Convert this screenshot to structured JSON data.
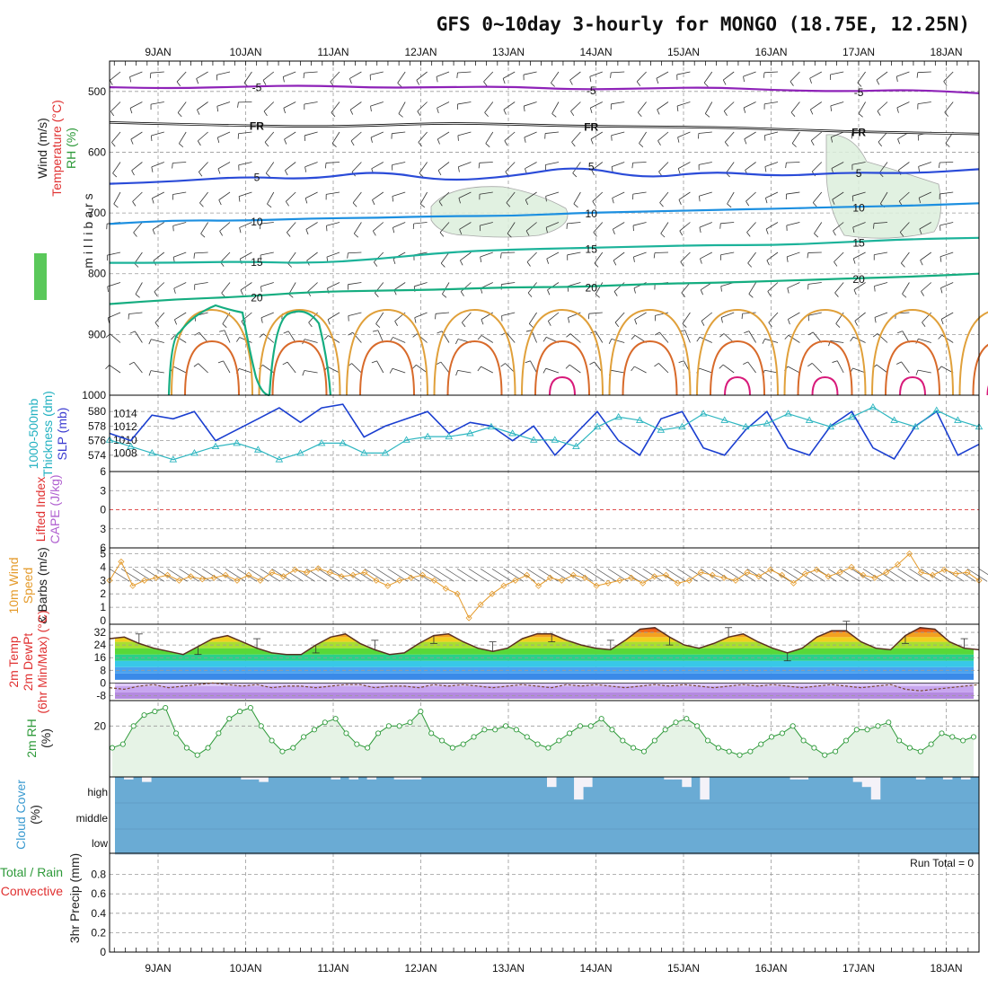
{
  "title": "GFS 0~10day 3-hourly for MONGO (18.75E, 12.25N)",
  "x_axis": {
    "dates": [
      "9JAN",
      "10JAN",
      "11JAN",
      "12JAN",
      "13JAN",
      "14JAN",
      "15JAN",
      "16JAN",
      "17JAN",
      "18JAN"
    ]
  },
  "chart_data": [
    {
      "type": "contour",
      "panel": "upper-air",
      "ylabel_lines": [
        "Wind (m/s)",
        "Temperature (°C)",
        "RH (%)"
      ],
      "ylabel_units": "millibars",
      "y_ticks": [
        "500",
        "600",
        "700",
        "800",
        "900",
        "1000"
      ],
      "ylim": [
        1000,
        450
      ],
      "temperature_contours": [
        {
          "label": "-5",
          "color": "#8e22b8",
          "p": [
            493,
            495,
            492,
            490,
            494,
            493,
            492,
            497,
            495,
            493,
            498,
            500,
            497,
            503
          ]
        },
        {
          "label": "FR",
          "color": "#111111",
          "p": [
            551,
            554,
            556,
            558,
            556,
            552,
            554,
            557,
            558,
            559,
            562,
            566,
            568,
            570
          ]
        },
        {
          "label": "5",
          "color": "#2a4bd8",
          "p": [
            652,
            648,
            640,
            645,
            630,
            648,
            640,
            622,
            644,
            631,
            640,
            633,
            635,
            628
          ]
        },
        {
          "label": "10",
          "color": "#1c8fe0",
          "p": [
            718,
            712,
            713,
            709,
            708,
            705,
            705,
            700,
            698,
            695,
            693,
            690,
            688,
            684
          ]
        },
        {
          "label": "15",
          "color": "#1cb39a",
          "p": [
            782,
            782,
            780,
            783,
            776,
            765,
            760,
            758,
            755,
            753,
            753,
            748,
            743,
            741
          ]
        },
        {
          "label": "20",
          "color": "#15ad80",
          "p": [
            850,
            842,
            838,
            830,
            828,
            826,
            822,
            822,
            817,
            815,
            812,
            808,
            805,
            800
          ]
        }
      ],
      "contour_labels_shown": [
        "-5",
        "FR",
        "5",
        "10",
        "15",
        "20"
      ]
    },
    {
      "type": "line",
      "panel": "thickness-slp",
      "ylabel_lines": [
        "1000-500mb",
        "Thickness (dm)",
        "SLP (mb)"
      ],
      "left_ticks": [
        "574",
        "576",
        "578",
        "580"
      ],
      "right_ticks": [
        "1008",
        "1010",
        "1012",
        "1014"
      ],
      "series": [
        {
          "name": "1000-500mb Thickness (dm)",
          "color": "#1a3ed0",
          "marker": "none",
          "values": [
            577.0,
            576.0,
            579.5,
            579.0,
            580.0,
            576.0,
            577.5,
            579.0,
            580.5,
            578.5,
            580.5,
            581.0,
            576.5,
            578.0,
            579.0,
            580.0,
            577.0,
            578.5,
            578.0,
            576.0,
            578.0,
            574.0,
            577.0,
            580.0,
            576.0,
            574.0,
            579.0,
            580.0,
            575.0,
            574.0,
            577.5,
            580.0,
            575.0,
            574.0,
            578.0,
            580.0,
            575.0,
            573.5,
            578.0,
            580.0,
            574.0,
            575.5
          ]
        },
        {
          "name": "SLP (mb)",
          "color": "#2eb6c0",
          "marker": "triangle",
          "values": [
            1010.0,
            1009.0,
            1008.0,
            1007.0,
            1008.0,
            1009.0,
            1009.5,
            1008.5,
            1007.0,
            1008.0,
            1009.5,
            1009.5,
            1008.0,
            1008.0,
            1010.0,
            1010.5,
            1010.5,
            1011.0,
            1012.0,
            1011.0,
            1010.0,
            1010.0,
            1009.0,
            1012.0,
            1013.5,
            1013.0,
            1011.5,
            1012.0,
            1014.0,
            1013.0,
            1012.0,
            1012.5,
            1014.0,
            1013.0,
            1012.0,
            1013.5,
            1015.0,
            1013.0,
            1012.0,
            1014.5,
            1013.0,
            1012.0
          ]
        }
      ]
    },
    {
      "type": "line",
      "panel": "lifted-index-cape",
      "ylabel_lines": [
        "Lifted Index",
        "CAPE (J/kg)"
      ],
      "y_ticks": [
        "6",
        "3",
        "0",
        "3",
        "6"
      ],
      "ylim": [
        -6,
        6
      ],
      "zero_line_color": "#e05050",
      "series": []
    },
    {
      "type": "line",
      "panel": "wind-10m",
      "ylabel_lines": [
        "10m Wind",
        "Speed",
        "& Barbs (m/s)"
      ],
      "y_ticks": [
        "0",
        "1",
        "2",
        "3",
        "4",
        "5"
      ],
      "ylim": [
        0,
        5.3
      ],
      "series": [
        {
          "name": "10m Wind Speed (m/s)",
          "color": "#e49a2a",
          "marker": "diamond",
          "values": [
            3.0,
            4.4,
            2.6,
            3.0,
            3.2,
            3.4,
            3.0,
            3.3,
            3.1,
            3.2,
            3.4,
            3.0,
            3.4,
            3.0,
            3.6,
            3.3,
            3.8,
            3.6,
            3.9,
            3.6,
            3.3,
            3.4,
            3.6,
            3.0,
            2.6,
            3.0,
            3.2,
            3.4,
            3.0,
            2.4,
            2.0,
            0.2,
            1.2,
            2.0,
            2.6,
            3.0,
            3.4,
            2.6,
            3.2,
            3.0,
            3.4,
            3.2,
            2.6,
            2.8,
            3.0,
            3.2,
            2.8,
            3.3,
            3.4,
            2.8,
            3.0,
            3.6,
            3.4,
            3.2,
            3.0,
            3.6,
            3.3,
            3.8,
            3.4,
            2.8,
            3.5,
            3.8,
            3.3,
            3.6,
            4.0,
            3.4,
            3.2,
            3.6,
            4.2,
            5.0,
            3.6,
            3.4,
            3.8,
            3.5,
            3.6,
            3.0
          ]
        }
      ]
    },
    {
      "type": "area",
      "panel": "temp-2m",
      "ylabel_lines": [
        "2m Temp",
        "2m DewPt",
        "(6hr Min/Max) (°C)"
      ],
      "y_ticks": [
        "-8",
        "0",
        "8",
        "16",
        "24",
        "32"
      ],
      "ylim": [
        -10,
        36
      ],
      "series": [
        {
          "name": "2m Temp (°C)",
          "color": "#5a3020",
          "values": [
            28,
            29,
            25,
            22,
            20,
            18,
            23,
            28,
            30,
            26,
            22,
            19,
            18,
            18,
            24,
            29,
            31,
            25,
            21,
            18,
            19,
            25,
            30,
            31,
            26,
            22,
            20,
            22,
            28,
            31,
            31,
            27,
            24,
            22,
            21,
            27,
            34,
            35,
            29,
            24,
            22,
            25,
            29,
            31,
            26,
            22,
            19,
            22,
            29,
            33,
            33,
            26,
            22,
            21,
            30,
            35,
            34,
            26,
            22,
            21
          ]
        },
        {
          "name": "2m DewPt (°C)",
          "color": "#8a5aa0",
          "style": "dashed",
          "values": [
            -3,
            -4,
            -2,
            -1,
            -3,
            -2,
            -1,
            0,
            -1,
            -2,
            -1,
            -3,
            -2,
            -2,
            -3,
            -2,
            -1,
            -1,
            -3,
            -2,
            -2,
            -3,
            -1,
            -2,
            -1,
            -2,
            -3,
            -2,
            -1,
            -2,
            -3,
            -1,
            -2,
            -1,
            -2,
            -3,
            -2,
            -1,
            -2,
            -1,
            -2,
            -3,
            -2,
            -1,
            -2,
            -1,
            -2,
            -3,
            -2,
            -1,
            -2,
            -3,
            -2,
            -1,
            -4,
            -5,
            -4,
            -3,
            -2,
            -1
          ]
        }
      ]
    },
    {
      "type": "line",
      "panel": "rh-2m",
      "ylabel_lines": [
        "2m RH",
        "(%)"
      ],
      "y_ticks": [
        "20"
      ],
      "ylim": [
        6,
        26
      ],
      "series": [
        {
          "name": "2m RH (%)",
          "color": "#2e9a3a",
          "marker": "circle",
          "values": [
            14,
            15,
            20,
            23,
            24,
            25,
            18,
            14,
            12,
            14,
            18,
            22,
            24,
            25,
            20,
            16,
            13,
            14,
            17,
            19,
            21,
            22,
            18,
            15,
            14,
            18,
            20,
            20,
            21,
            24,
            18,
            16,
            14,
            15,
            17,
            19,
            19,
            20,
            19,
            17,
            15,
            14,
            16,
            18,
            20,
            20,
            22,
            19,
            16,
            14,
            13,
            16,
            19,
            21,
            22,
            20,
            16,
            14,
            13,
            12,
            13,
            15,
            17,
            18,
            20,
            16,
            14,
            12,
            13,
            16,
            19,
            19,
            20,
            21,
            16,
            14,
            13,
            15,
            18,
            17,
            16,
            17
          ]
        }
      ]
    },
    {
      "type": "bar",
      "panel": "cloud-cover",
      "ylabel_lines": [
        "Cloud Cover",
        "(%)"
      ],
      "y_ticks": [
        "high",
        "middle",
        "low"
      ],
      "base_color": "#6aabd4",
      "notch_color": "#f4f2f8",
      "high_cloud_gaps_percent": [
        0,
        1,
        0,
        2,
        0,
        0,
        0,
        0,
        0,
        0,
        0,
        0,
        0,
        0,
        1,
        1,
        2,
        0,
        0,
        0,
        0,
        0,
        0,
        0,
        1,
        0,
        1,
        0,
        1,
        0,
        0,
        1,
        1,
        1,
        0,
        0,
        0,
        0,
        0,
        0,
        0,
        0,
        0,
        0,
        0,
        0,
        0,
        0,
        4,
        0,
        0,
        9,
        4,
        0,
        0,
        0,
        0,
        0,
        0,
        0,
        0,
        1,
        1,
        4,
        0,
        9,
        0,
        0,
        0,
        0,
        0,
        0,
        0,
        0,
        0,
        1,
        1,
        0,
        0,
        0,
        0,
        0,
        2,
        4,
        9,
        0,
        0,
        0,
        0,
        1,
        0,
        0,
        1,
        0,
        1,
        0
      ]
    },
    {
      "type": "bar",
      "panel": "precip",
      "ylabel_lines": [
        "Total / Rain",
        "Convective",
        "3hr Precip (mm)"
      ],
      "y_ticks": [
        "0",
        "0.2",
        "0.4",
        "0.6",
        "0.8"
      ],
      "ylim": [
        0,
        1.0
      ],
      "run_total_text": "Run Total = 0",
      "series": [
        {
          "name": "Total",
          "color": "#2e9a3a",
          "values": []
        },
        {
          "name": "Convective",
          "color": "#e03030",
          "values": []
        }
      ]
    }
  ],
  "label_colors": {
    "wind": "#222222",
    "temperature": "#e03030",
    "rh": "#2e9a3a",
    "thickness": "#20b0c0",
    "slp": "#3a3ad0",
    "lifted": "#e03030",
    "cape": "#b060d0",
    "wind10m": "#e49a2a",
    "temp2m": "#e03030",
    "rh2m": "#2e9a3a",
    "cloud": "#3a9ad0",
    "precip_total": "#2e9a3a",
    "precip_conv": "#e03030"
  }
}
